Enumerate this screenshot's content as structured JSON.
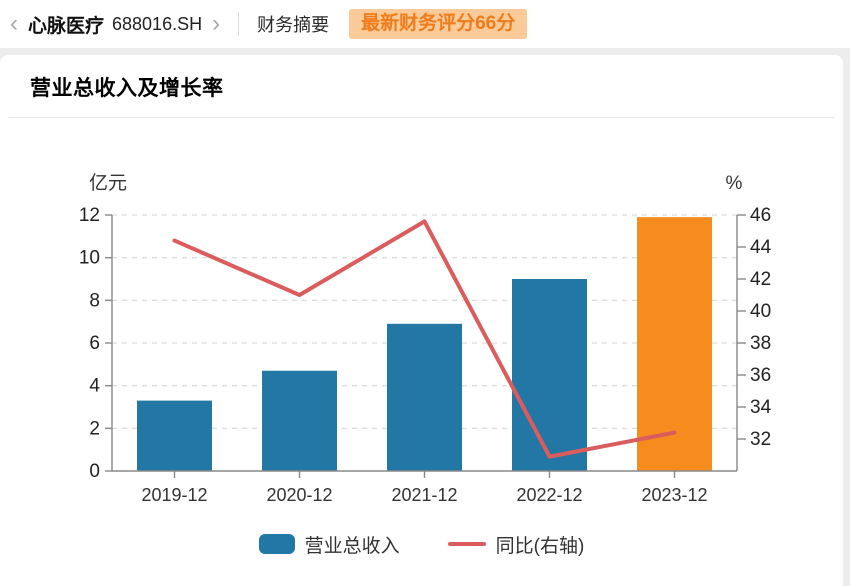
{
  "header": {
    "prev_icon": "‹",
    "next_icon": "›",
    "stock_name": "心脉医疗",
    "stock_code": "688016.SH",
    "tab_label": "财务摘要",
    "badge_label": "最新财务评分66分"
  },
  "section": {
    "title": "营业总收入及增长率"
  },
  "chart_data": {
    "type": "bar",
    "title": "营业总收入及增长率",
    "categories": [
      "2019-12",
      "2020-12",
      "2021-12",
      "2022-12",
      "2023-12"
    ],
    "series": [
      {
        "name": "营业总收入",
        "type": "bar",
        "axis": "left",
        "values": [
          3.3,
          4.7,
          6.9,
          9.0,
          11.9
        ],
        "colors": [
          "#2377A5",
          "#2377A5",
          "#2377A5",
          "#2377A5",
          "#F78C1E"
        ]
      },
      {
        "name": "同比(右轴)",
        "type": "line",
        "axis": "right",
        "values": [
          44.4,
          41.0,
          45.6,
          30.9,
          32.4
        ],
        "color": "#DB5C5C"
      }
    ],
    "left_axis": {
      "label": "亿元",
      "min": 0,
      "max": 12,
      "ticks": [
        0,
        2,
        4,
        6,
        8,
        10,
        12
      ]
    },
    "right_axis": {
      "label": "%",
      "min": 30,
      "max": 46,
      "ticks": [
        32,
        34,
        36,
        38,
        40,
        42,
        44,
        46
      ]
    },
    "grid": true,
    "legend_position": "bottom",
    "colors": {
      "bar_default": "#2377A5",
      "bar_highlight": "#F78C1E",
      "line": "#DB5C5C",
      "axis": "#888888",
      "gridline": "#DCDCDC",
      "tick_text": "#222222"
    }
  }
}
